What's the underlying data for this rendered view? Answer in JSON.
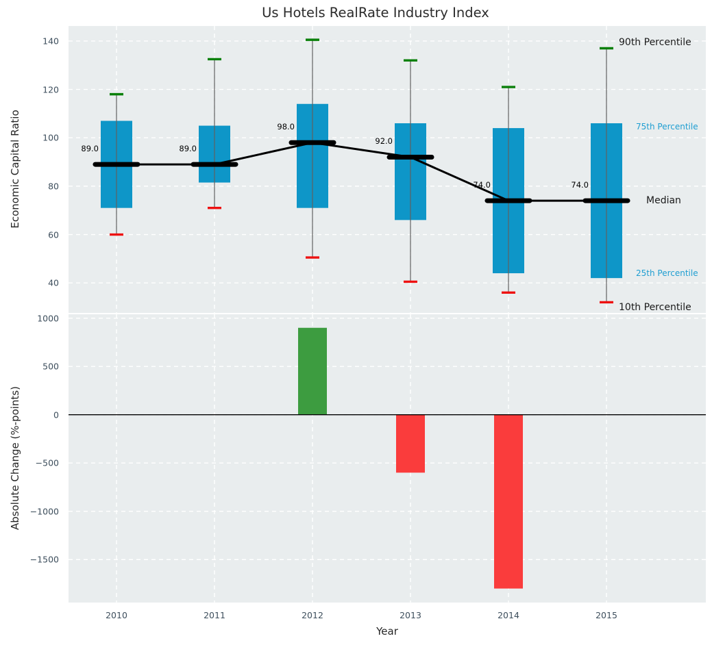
{
  "title": "Us Hotels RealRate Industry Index",
  "chart_data": [
    {
      "type": "boxplot",
      "title": "Us Hotels RealRate Industry Index",
      "ylabel": "Economic Capital Ratio",
      "categories": [
        "2010",
        "2011",
        "2012",
        "2013",
        "2014",
        "2015"
      ],
      "series": [
        {
          "name": "90th Percentile",
          "values": [
            118,
            132.5,
            140.5,
            132,
            121,
            137
          ]
        },
        {
          "name": "75th Percentile",
          "values": [
            107,
            105,
            114,
            106,
            104,
            106
          ]
        },
        {
          "name": "Median",
          "values": [
            89,
            89,
            98,
            92,
            74,
            74
          ]
        },
        {
          "name": "25th Percentile",
          "values": [
            71,
            81.5,
            71,
            66,
            44,
            42
          ]
        },
        {
          "name": "10th Percentile",
          "values": [
            60,
            71,
            50.5,
            40.5,
            36,
            32
          ]
        }
      ],
      "median_point_labels": [
        "89.0",
        "89.0",
        "98.0",
        "92.0",
        "74.0",
        "74.0"
      ],
      "yticks": [
        140,
        120,
        100,
        80,
        60,
        40
      ],
      "ylim": [
        27.6,
        146.2
      ],
      "grid": true,
      "legend_position": "right-margin",
      "side_labels": [
        {
          "series_index": 0,
          "color": "#1a1a1a",
          "size": 14,
          "anchor_value": 139.5,
          "x": 903
        },
        {
          "series_index": 1,
          "color": "#1f9ed1",
          "size": 12,
          "anchor_value": 104.5,
          "x": 928
        },
        {
          "series_index": 2,
          "color": "#1a1a1a",
          "size": 14,
          "anchor_value": 74,
          "x": 943
        },
        {
          "series_index": 3,
          "color": "#1f9ed1",
          "size": 12,
          "anchor_value": 44,
          "x": 928
        },
        {
          "series_index": 4,
          "color": "#1a1a1a",
          "size": 14,
          "anchor_value": 30,
          "x": 903
        }
      ]
    },
    {
      "type": "bar",
      "xlabel": "Year",
      "ylabel": "Absolute Change (%-points)",
      "categories": [
        "2010",
        "2011",
        "2012",
        "2013",
        "2014",
        "2015"
      ],
      "values": [
        0,
        0,
        900,
        -600,
        -1800,
        0
      ],
      "yticks": [
        1000,
        500,
        0,
        -500,
        -1000,
        -1500
      ],
      "ylim": [
        -1945,
        1040
      ],
      "grid": true
    }
  ],
  "colors": {
    "box_fill": "#0e96c8",
    "whisker_line": "#606060",
    "p90_cap": "#0a800a",
    "p10_cap": "#ee1111",
    "median_line": "#000000",
    "bar_positive": "#3d9c40",
    "bar_negative": "#fa3c3c",
    "panel_background": "#e9edee",
    "gridline": "#ffffff",
    "tick_label": "#3d4e5c",
    "zero_line": "#000000",
    "blue_side_label": "#1f9ed1"
  }
}
